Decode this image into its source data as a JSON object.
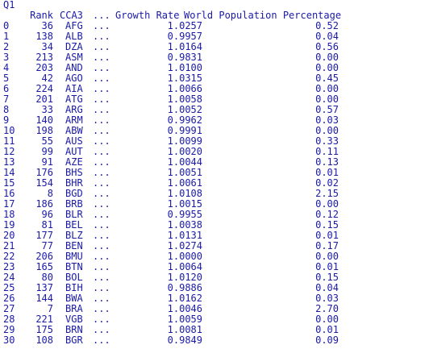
{
  "console_title": "Q1",
  "columns": {
    "rank": "Rank",
    "cca3": "CCA3",
    "ellipsis": "...",
    "growth_rate": "Growth Rate",
    "world_population_percentage": "World Population Percentage"
  },
  "rows": [
    {
      "index": "0",
      "rank": "36",
      "cca3": "AFG",
      "ellipsis": "...",
      "growth_rate": "1.0257",
      "world_pct": "0.52"
    },
    {
      "index": "1",
      "rank": "138",
      "cca3": "ALB",
      "ellipsis": "...",
      "growth_rate": "0.9957",
      "world_pct": "0.04"
    },
    {
      "index": "2",
      "rank": "34",
      "cca3": "DZA",
      "ellipsis": "...",
      "growth_rate": "1.0164",
      "world_pct": "0.56"
    },
    {
      "index": "3",
      "rank": "213",
      "cca3": "ASM",
      "ellipsis": "...",
      "growth_rate": "0.9831",
      "world_pct": "0.00"
    },
    {
      "index": "4",
      "rank": "203",
      "cca3": "AND",
      "ellipsis": "...",
      "growth_rate": "1.0100",
      "world_pct": "0.00"
    },
    {
      "index": "5",
      "rank": "42",
      "cca3": "AGO",
      "ellipsis": "...",
      "growth_rate": "1.0315",
      "world_pct": "0.45"
    },
    {
      "index": "6",
      "rank": "224",
      "cca3": "AIA",
      "ellipsis": "...",
      "growth_rate": "1.0066",
      "world_pct": "0.00"
    },
    {
      "index": "7",
      "rank": "201",
      "cca3": "ATG",
      "ellipsis": "...",
      "growth_rate": "1.0058",
      "world_pct": "0.00"
    },
    {
      "index": "8",
      "rank": "33",
      "cca3": "ARG",
      "ellipsis": "...",
      "growth_rate": "1.0052",
      "world_pct": "0.57"
    },
    {
      "index": "9",
      "rank": "140",
      "cca3": "ARM",
      "ellipsis": "...",
      "growth_rate": "0.9962",
      "world_pct": "0.03"
    },
    {
      "index": "10",
      "rank": "198",
      "cca3": "ABW",
      "ellipsis": "...",
      "growth_rate": "0.9991",
      "world_pct": "0.00"
    },
    {
      "index": "11",
      "rank": "55",
      "cca3": "AUS",
      "ellipsis": "...",
      "growth_rate": "1.0099",
      "world_pct": "0.33"
    },
    {
      "index": "12",
      "rank": "99",
      "cca3": "AUT",
      "ellipsis": "...",
      "growth_rate": "1.0020",
      "world_pct": "0.11"
    },
    {
      "index": "13",
      "rank": "91",
      "cca3": "AZE",
      "ellipsis": "...",
      "growth_rate": "1.0044",
      "world_pct": "0.13"
    },
    {
      "index": "14",
      "rank": "176",
      "cca3": "BHS",
      "ellipsis": "...",
      "growth_rate": "1.0051",
      "world_pct": "0.01"
    },
    {
      "index": "15",
      "rank": "154",
      "cca3": "BHR",
      "ellipsis": "...",
      "growth_rate": "1.0061",
      "world_pct": "0.02"
    },
    {
      "index": "16",
      "rank": "8",
      "cca3": "BGD",
      "ellipsis": "...",
      "growth_rate": "1.0108",
      "world_pct": "2.15"
    },
    {
      "index": "17",
      "rank": "186",
      "cca3": "BRB",
      "ellipsis": "...",
      "growth_rate": "1.0015",
      "world_pct": "0.00"
    },
    {
      "index": "18",
      "rank": "96",
      "cca3": "BLR",
      "ellipsis": "...",
      "growth_rate": "0.9955",
      "world_pct": "0.12"
    },
    {
      "index": "19",
      "rank": "81",
      "cca3": "BEL",
      "ellipsis": "...",
      "growth_rate": "1.0038",
      "world_pct": "0.15"
    },
    {
      "index": "20",
      "rank": "177",
      "cca3": "BLZ",
      "ellipsis": "...",
      "growth_rate": "1.0131",
      "world_pct": "0.01"
    },
    {
      "index": "21",
      "rank": "77",
      "cca3": "BEN",
      "ellipsis": "...",
      "growth_rate": "1.0274",
      "world_pct": "0.17"
    },
    {
      "index": "22",
      "rank": "206",
      "cca3": "BMU",
      "ellipsis": "...",
      "growth_rate": "1.0000",
      "world_pct": "0.00"
    },
    {
      "index": "23",
      "rank": "165",
      "cca3": "BTN",
      "ellipsis": "...",
      "growth_rate": "1.0064",
      "world_pct": "0.01"
    },
    {
      "index": "24",
      "rank": "80",
      "cca3": "BOL",
      "ellipsis": "...",
      "growth_rate": "1.0120",
      "world_pct": "0.15"
    },
    {
      "index": "25",
      "rank": "137",
      "cca3": "BIH",
      "ellipsis": "...",
      "growth_rate": "0.9886",
      "world_pct": "0.04"
    },
    {
      "index": "26",
      "rank": "144",
      "cca3": "BWA",
      "ellipsis": "...",
      "growth_rate": "1.0162",
      "world_pct": "0.03"
    },
    {
      "index": "27",
      "rank": "7",
      "cca3": "BRA",
      "ellipsis": "...",
      "growth_rate": "1.0046",
      "world_pct": "2.70"
    },
    {
      "index": "28",
      "rank": "221",
      "cca3": "VGB",
      "ellipsis": "...",
      "growth_rate": "1.0059",
      "world_pct": "0.00"
    },
    {
      "index": "29",
      "rank": "175",
      "cca3": "BRN",
      "ellipsis": "...",
      "growth_rate": "1.0081",
      "world_pct": "0.01"
    },
    {
      "index": "30",
      "rank": "108",
      "cca3": "BGR",
      "ellipsis": "...",
      "growth_rate": "0.9849",
      "world_pct": "0.09"
    }
  ],
  "colors": {
    "text": "#1a1aa6",
    "background": "#ffffff"
  }
}
